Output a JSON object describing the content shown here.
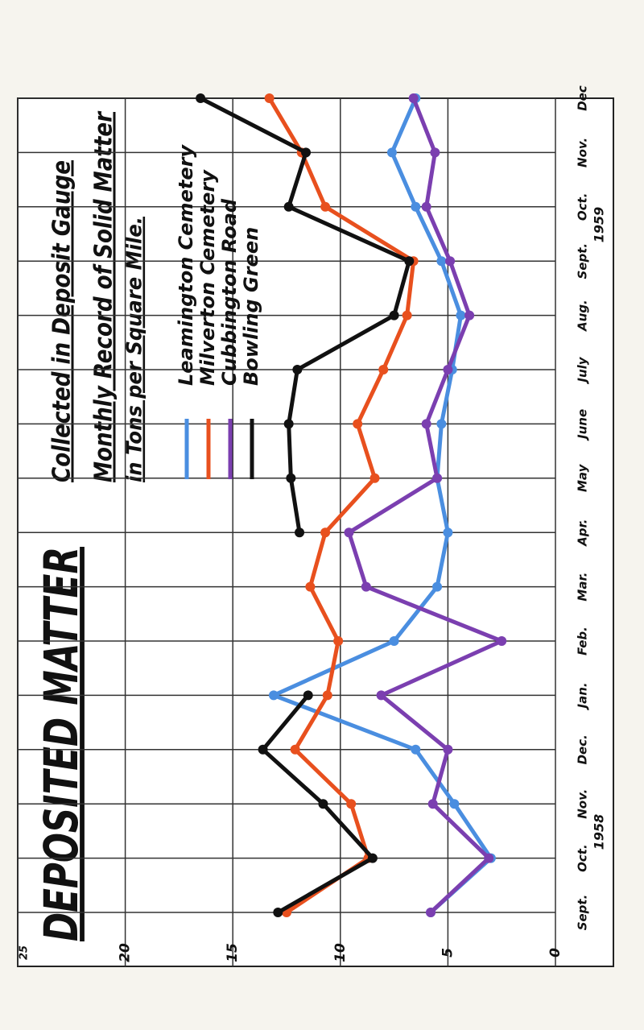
{
  "chart_data": {
    "type": "line",
    "title": "DEPOSITED MATTER",
    "subtitle": [
      "Collected in Deposit Gauge",
      "Monthly Record of Solid Matter",
      "in Tons per Square Mile."
    ],
    "categories": [
      "Sept.",
      "Oct.",
      "Nov.",
      "Dec.",
      "Jan.",
      "Feb.",
      "Mar.",
      "Apr.",
      "May",
      "June",
      "July",
      "Aug.",
      "Sept.",
      "Oct.",
      "Nov.",
      "Dec"
    ],
    "annotations": [
      "1958",
      "1959"
    ],
    "ylim": [
      0,
      25
    ],
    "yticks": [
      0,
      5,
      10,
      15,
      20,
      25
    ],
    "grid": true,
    "series": [
      {
        "name": "Leamington Cemetery",
        "color": "#4a8ee0",
        "values": [
          5.8,
          3.0,
          4.7,
          6.5,
          13.1,
          7.5,
          5.5,
          5.0,
          5.5,
          5.3,
          4.8,
          4.4,
          5.3,
          6.5,
          7.6,
          6.5
        ]
      },
      {
        "name": "Milverton Cemetery",
        "color": "#e8501e",
        "values": [
          12.5,
          8.7,
          9.5,
          12.1,
          10.6,
          10.1,
          11.4,
          10.7,
          8.4,
          9.2,
          8.0,
          6.9,
          6.6,
          10.7,
          11.8,
          13.3
        ]
      },
      {
        "name": "Cubbington Road",
        "color": "#7b3fb0",
        "values": [
          5.8,
          3.1,
          5.7,
          5.0,
          8.1,
          2.5,
          8.8,
          9.6,
          5.5,
          6.0,
          5.0,
          4.0,
          4.9,
          6.0,
          5.6,
          6.6
        ]
      },
      {
        "name": "Bowling Green",
        "color": "#111111",
        "values": [
          12.9,
          8.5,
          10.8,
          13.6,
          11.5,
          null,
          null,
          11.9,
          12.3,
          12.4,
          12.0,
          7.5,
          6.8,
          12.4,
          11.6,
          16.5
        ]
      }
    ]
  }
}
